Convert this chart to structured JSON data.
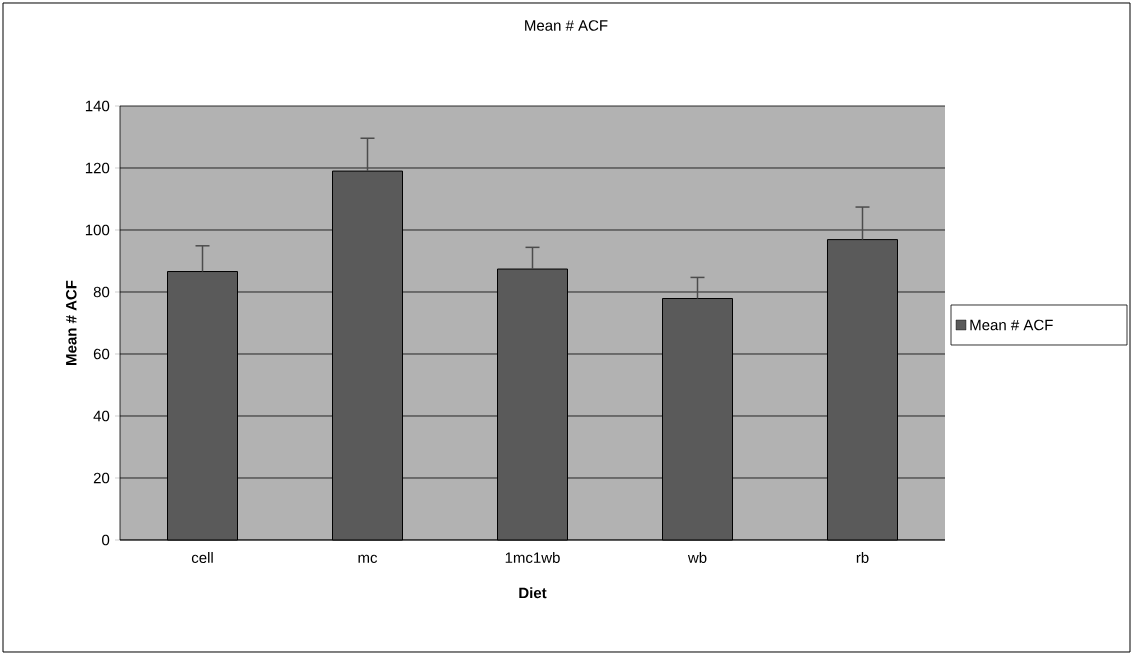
{
  "chart_data": {
    "type": "bar",
    "title": "Mean # ACF",
    "xlabel": "Diet",
    "ylabel": "Mean # ACF",
    "categories": [
      "cell",
      "mc",
      "1mc1wb",
      "wb",
      "rb"
    ],
    "series": [
      {
        "name": "Mean # ACF",
        "color": "#5a5a5a",
        "values": [
          86.6,
          119,
          87.4,
          77.9,
          96.9
        ],
        "errors": [
          8.3,
          10.6,
          7,
          6.8,
          10.5
        ]
      }
    ],
    "ylim": [
      0,
      140
    ],
    "yticks": [
      0,
      20,
      40,
      60,
      80,
      100,
      120,
      140
    ],
    "grid": "y",
    "legend": "right"
  }
}
